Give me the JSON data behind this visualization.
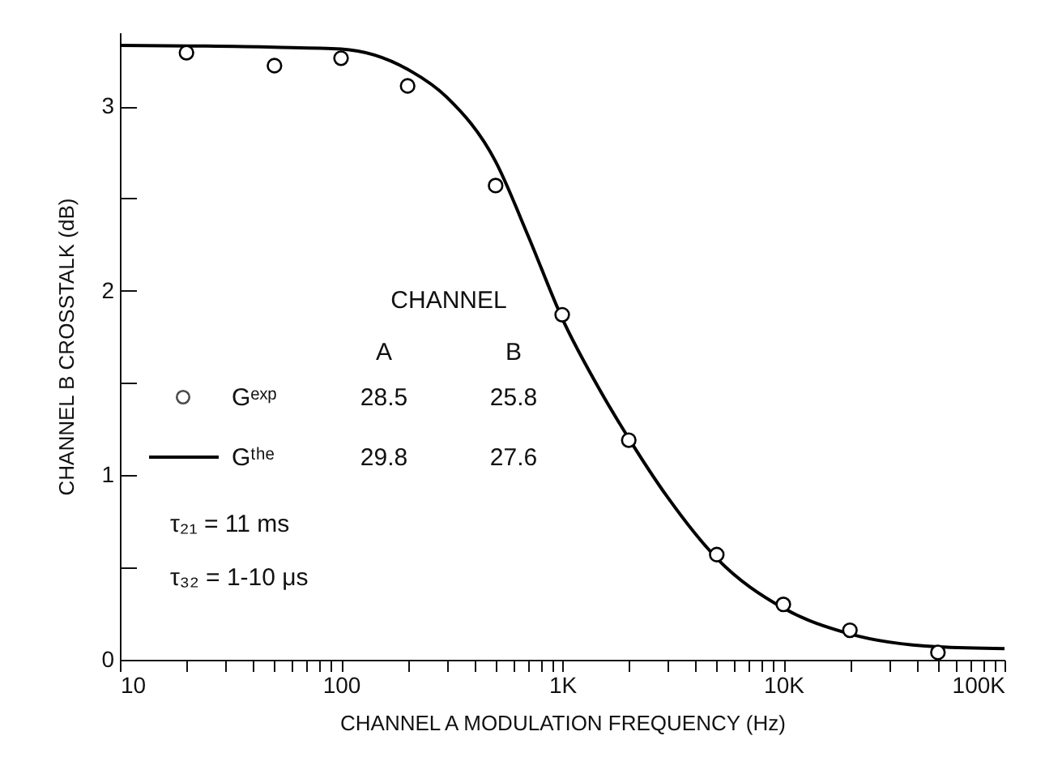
{
  "chart_data": {
    "type": "scatter",
    "xlabel": "CHANNEL A MODULATION FREQUENCY (Hz)",
    "ylabel": "CHANNEL B CROSSTALK (dB)",
    "log": "x",
    "grid": false,
    "legend": "left",
    "xlim": [
      10,
      100000
    ],
    "ylim": [
      0,
      3.4
    ],
    "xticks": [
      10,
      {
        "value": 20,
        "label": null
      },
      {
        "value": 30,
        "label": null
      },
      {
        "value": 40,
        "label": null
      },
      {
        "value": 50,
        "label": null
      },
      {
        "value": 60,
        "label": null
      },
      {
        "value": 70,
        "label": null
      },
      {
        "value": 80,
        "label": null
      },
      {
        "value": 90,
        "label": null
      },
      100,
      {
        "value": 200,
        "label": null
      },
      {
        "value": 300,
        "label": null
      },
      {
        "value": 400,
        "label": null
      },
      {
        "value": 500,
        "label": null
      },
      {
        "value": 600,
        "label": null
      },
      {
        "value": 700,
        "label": null
      },
      {
        "value": 800,
        "label": null
      },
      {
        "value": 900,
        "label": null
      },
      {
        "value": 1000,
        "label": "1K"
      },
      {
        "value": 2000,
        "label": null
      },
      {
        "value": 3000,
        "label": null
      },
      {
        "value": 4000,
        "label": null
      },
      {
        "value": 5000,
        "label": null
      },
      {
        "value": 6000,
        "label": null
      },
      {
        "value": 7000,
        "label": null
      },
      {
        "value": 8000,
        "label": null
      },
      {
        "value": 9000,
        "label": null
      },
      {
        "value": 10000,
        "label": "10K"
      },
      {
        "value": 20000,
        "label": null
      },
      {
        "value": 30000,
        "label": null
      },
      {
        "value": 40000,
        "label": null
      },
      {
        "value": 50000,
        "label": null
      },
      {
        "value": 60000,
        "label": null
      },
      {
        "value": 70000,
        "label": null
      },
      {
        "value": 80000,
        "label": null
      },
      {
        "value": 90000,
        "label": null
      },
      {
        "value": 100000,
        "label": "100K"
      }
    ],
    "yticks": [
      0,
      {
        "value": 0.5,
        "label": null
      },
      1,
      {
        "value": 1.5,
        "label": null
      },
      2,
      {
        "value": 2.5,
        "label": null
      },
      3
    ],
    "series": [
      {
        "name": "Gᵉˣᵖ",
        "type": "scatter",
        "marker": "circle",
        "color": "#000000",
        "x": [
          20,
          50,
          100,
          200,
          500,
          1000,
          2000,
          5000,
          10000,
          20000,
          50000
        ],
        "values": [
          3.29,
          3.22,
          3.26,
          3.11,
          2.57,
          1.87,
          1.19,
          0.57,
          0.3,
          0.16,
          0.04
        ]
      },
      {
        "name": "Gᵗʰᵉ",
        "type": "line",
        "marker": "none",
        "line_style": "solid",
        "color": "#000000",
        "x": [
          10,
          50,
          100,
          200,
          300,
          500,
          700,
          1000,
          1500,
          2000,
          3000,
          5000,
          10000,
          20000,
          50000,
          100000
        ],
        "values": [
          3.33,
          3.32,
          3.31,
          3.2,
          3.05,
          2.7,
          2.3,
          1.85,
          1.45,
          1.2,
          0.88,
          0.55,
          0.28,
          0.14,
          0.07,
          0.06
        ]
      }
    ],
    "annotations": [
      "CHANNEL",
      "A",
      "B",
      "28.5",
      "25.8",
      "29.8",
      "27.6",
      "τ₂₁ = 11 ms",
      "τ₃₂ = 1-10 μs"
    ]
  }
}
